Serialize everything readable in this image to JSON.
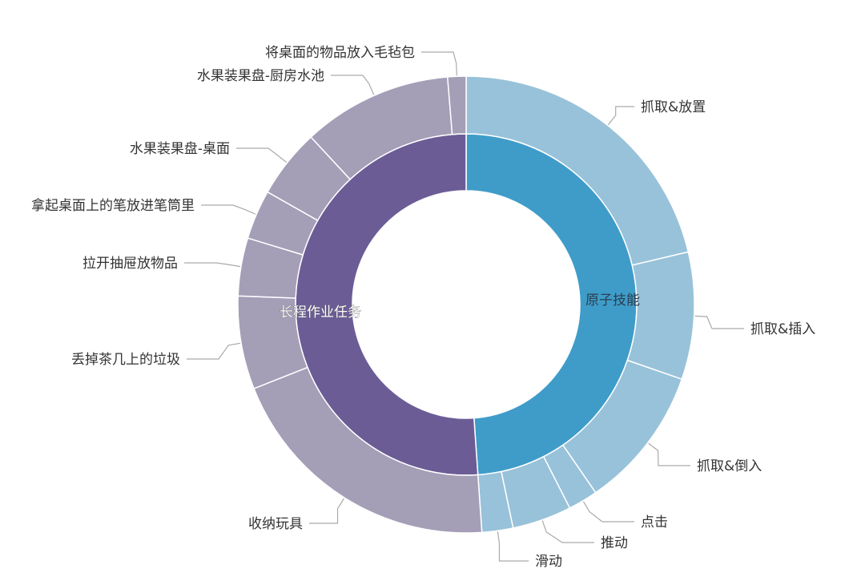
{
  "chart_data": {
    "type": "sunburst",
    "unit": "share of total (%), estimated from arc angles",
    "colors": {
      "inner_blue": "#3f9cc9",
      "outer_blue": "#98c2da",
      "inner_purple": "#6b5c96",
      "outer_purple": "#a49eb7",
      "leader_line": "#aaaaaa"
    },
    "inner": [
      {
        "name": "原子技能",
        "value": 48.9,
        "color": "#3f9cc9",
        "children": [
          {
            "name": "抓取&放置",
            "value": 21.3
          },
          {
            "name": "抓取&插入",
            "value": 9.0
          },
          {
            "name": "抓取&倒入",
            "value": 10.1
          },
          {
            "name": "点击",
            "value": 2.1
          },
          {
            "name": "推动",
            "value": 4.2
          },
          {
            "name": "滑动",
            "value": 2.2
          }
        ]
      },
      {
        "name": "长程作业任务",
        "value": 51.1,
        "color": "#6b5c96",
        "children": [
          {
            "name": "收纳玩具",
            "value": 20.1
          },
          {
            "name": "丢掉茶几上的垃圾",
            "value": 6.6
          },
          {
            "name": "拉开抽屉放物品",
            "value": 4.1
          },
          {
            "name": "拿起桌面上的笔放进笔筒里",
            "value": 3.5
          },
          {
            "name": "水果装果盘-桌面",
            "value": 4.9
          },
          {
            "name": "水果装果盘-厨房水池",
            "value": 10.6
          },
          {
            "name": "将桌面的物品放入毛毡包",
            "value": 1.3
          }
        ]
      }
    ]
  }
}
